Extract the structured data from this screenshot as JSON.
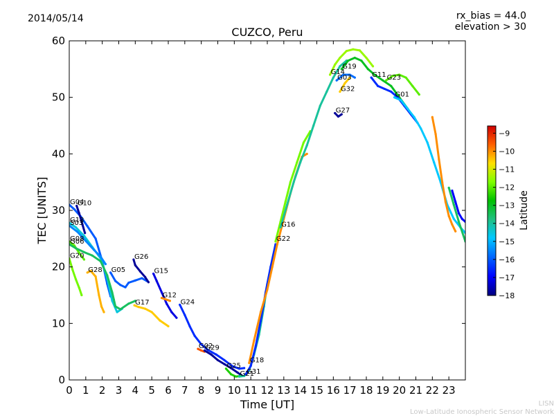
{
  "header": {
    "date": "2014/05/14",
    "rx_bias": "rx_bias = 44.0",
    "elevation": "elevation > 30"
  },
  "footer": {
    "line1": "LISN",
    "line2": "Low-Latitude Ionospheric Sensor Network"
  },
  "chart_data": {
    "type": "scatter",
    "title": "CUZCO, Peru",
    "xlabel": "Time [UT]",
    "ylabel": "TEC [UNITS]",
    "xlim": [
      0,
      24
    ],
    "ylim": [
      0,
      60
    ],
    "xticks": [
      0,
      1,
      2,
      3,
      4,
      5,
      6,
      7,
      8,
      9,
      10,
      11,
      12,
      13,
      14,
      15,
      16,
      17,
      18,
      19,
      20,
      21,
      22,
      23
    ],
    "yticks": [
      0,
      10,
      20,
      30,
      40,
      50,
      60
    ],
    "grid": false,
    "colorbar": {
      "label": "Latitude",
      "range": [
        -18,
        -8.6
      ],
      "ticks": [
        -18,
        -17,
        -16,
        -15,
        -14,
        -13,
        -12,
        -11,
        -10,
        -9
      ],
      "colormap": "jet"
    },
    "series": [
      {
        "name": "G04",
        "lat": -16.0,
        "points": [
          [
            0.0,
            31.0
          ],
          [
            0.3,
            30.2
          ],
          [
            0.7,
            28.9
          ],
          [
            1.1,
            27.2
          ],
          [
            1.6,
            25.0
          ],
          [
            2.0,
            21.0
          ],
          [
            2.3,
            17.0
          ],
          [
            2.5,
            14.8
          ],
          [
            2.7,
            14.2
          ]
        ]
      },
      {
        "name": "G10",
        "lat": -17.8,
        "points": [
          [
            0.45,
            30.8
          ],
          [
            0.6,
            29.5
          ],
          [
            0.8,
            27.5
          ],
          [
            0.95,
            26.0
          ]
        ]
      },
      {
        "name": "G13",
        "lat": -14.5,
        "points": [
          [
            0.0,
            27.8
          ],
          [
            0.4,
            27.0
          ],
          [
            0.9,
            25.5
          ],
          [
            1.4,
            23.5
          ],
          [
            1.9,
            21.5
          ],
          [
            2.3,
            18.0
          ],
          [
            2.6,
            14.0
          ],
          [
            2.9,
            12.0
          ],
          [
            3.2,
            12.6
          ]
        ]
      },
      {
        "name": "S03",
        "lat": -15.5,
        "points": [
          [
            0.0,
            27.3
          ],
          [
            0.5,
            26.2
          ],
          [
            1.0,
            24.6
          ],
          [
            1.5,
            23.0
          ],
          [
            1.9,
            21.8
          ],
          [
            2.2,
            20.5
          ]
        ]
      },
      {
        "name": "G08",
        "lat": -12.0,
        "points": [
          [
            0.0,
            24.5
          ],
          [
            0.3,
            23.8
          ],
          [
            0.6,
            22.5
          ],
          [
            0.9,
            21.3
          ]
        ]
      },
      {
        "name": "G06",
        "lat": -13.5,
        "points": [
          [
            0.0,
            24.0
          ],
          [
            0.4,
            23.3
          ],
          [
            0.9,
            22.6
          ],
          [
            1.4,
            22.0
          ],
          [
            1.9,
            21.0
          ],
          [
            2.3,
            18.5
          ],
          [
            2.6,
            15.5
          ],
          [
            2.8,
            13.0
          ],
          [
            3.1,
            12.5
          ],
          [
            3.6,
            13.5
          ],
          [
            4.0,
            14.0
          ]
        ]
      },
      {
        "name": "G20",
        "lat": -11.8,
        "points": [
          [
            0.0,
            21.5
          ],
          [
            0.2,
            19.5
          ],
          [
            0.4,
            17.8
          ],
          [
            0.6,
            16.3
          ],
          [
            0.75,
            15.0
          ]
        ]
      },
      {
        "name": "G28",
        "lat": -10.3,
        "points": [
          [
            1.1,
            19.0
          ],
          [
            1.3,
            19.3
          ],
          [
            1.6,
            18.3
          ],
          [
            1.8,
            15.0
          ],
          [
            1.95,
            13.0
          ],
          [
            2.1,
            12.0
          ]
        ]
      },
      {
        "name": "G05",
        "lat": -16.0,
        "points": [
          [
            2.5,
            19.0
          ],
          [
            2.8,
            17.5
          ],
          [
            3.1,
            16.8
          ],
          [
            3.4,
            16.4
          ],
          [
            3.6,
            17.2
          ],
          [
            4.0,
            17.6
          ],
          [
            4.4,
            18.0
          ],
          [
            4.7,
            17.5
          ]
        ]
      },
      {
        "name": "G26",
        "lat": -17.8,
        "points": [
          [
            3.9,
            21.3
          ],
          [
            4.0,
            20.3
          ],
          [
            4.3,
            19.2
          ],
          [
            4.6,
            18.2
          ],
          [
            4.8,
            17.3
          ]
        ]
      },
      {
        "name": "G17",
        "lat": -10.5,
        "points": [
          [
            3.95,
            13.2
          ],
          [
            4.2,
            12.9
          ],
          [
            4.6,
            12.6
          ],
          [
            5.0,
            12.0
          ],
          [
            5.5,
            10.5
          ],
          [
            6.0,
            9.5
          ]
        ]
      },
      {
        "name": "G15",
        "lat": -17.2,
        "points": [
          [
            5.1,
            18.8
          ],
          [
            5.3,
            17.5
          ],
          [
            5.6,
            15.5
          ],
          [
            5.9,
            13.5
          ],
          [
            6.2,
            12.0
          ],
          [
            6.5,
            11.0
          ]
        ]
      },
      {
        "name": "G12",
        "lat": -10.0,
        "points": [
          [
            5.6,
            14.5
          ],
          [
            5.8,
            14.3
          ],
          [
            6.1,
            14.0
          ]
        ]
      },
      {
        "name": "G24",
        "lat": -16.5,
        "points": [
          [
            6.7,
            13.3
          ],
          [
            7.0,
            11.5
          ],
          [
            7.3,
            9.5
          ],
          [
            7.6,
            7.8
          ],
          [
            8.0,
            6.3
          ],
          [
            8.4,
            5.3
          ],
          [
            8.9,
            4.5
          ],
          [
            9.4,
            3.5
          ],
          [
            9.9,
            2.4
          ],
          [
            10.3,
            2.0
          ],
          [
            10.6,
            2.1
          ]
        ]
      },
      {
        "name": "G02",
        "lat": -9.5,
        "points": [
          [
            7.8,
            5.5
          ],
          [
            8.0,
            5.2
          ],
          [
            8.2,
            5.0
          ]
        ]
      },
      {
        "name": "G29",
        "lat": -17.8,
        "points": [
          [
            8.2,
            5.2
          ],
          [
            8.6,
            4.5
          ],
          [
            9.0,
            3.5
          ],
          [
            9.4,
            2.8
          ],
          [
            9.8,
            2.1
          ],
          [
            10.2,
            1.3
          ],
          [
            10.45,
            0.8
          ]
        ]
      },
      {
        "name": "G25",
        "lat": -12.5,
        "points": [
          [
            9.5,
            2.0
          ],
          [
            9.8,
            1.0
          ],
          [
            10.1,
            0.6
          ],
          [
            10.4,
            0.7
          ]
        ]
      },
      {
        "name": "G21",
        "lat": -14.0,
        "points": [
          [
            10.3,
            0.6
          ],
          [
            10.6,
            0.7
          ],
          [
            10.9,
            1.7
          ],
          [
            11.2,
            4.5
          ],
          [
            11.5,
            8.0
          ],
          [
            11.8,
            13.0
          ],
          [
            12.0,
            17.0
          ],
          [
            12.15,
            19.0
          ]
        ]
      },
      {
        "name": "G31",
        "lat": -16.5,
        "points": [
          [
            10.7,
            1.0
          ],
          [
            11.0,
            2.5
          ],
          [
            11.3,
            6.0
          ],
          [
            11.6,
            10.5
          ],
          [
            11.9,
            15.5
          ],
          [
            12.2,
            20.0
          ],
          [
            12.5,
            24.0
          ]
        ]
      },
      {
        "name": "G18",
        "lat": -10.0,
        "points": [
          [
            10.9,
            3.0
          ],
          [
            11.2,
            7.0
          ],
          [
            11.6,
            12.0
          ],
          [
            12.0,
            16.0
          ],
          [
            12.3,
            20.0
          ],
          [
            12.6,
            24.0
          ],
          [
            13.0,
            28.5
          ],
          [
            13.4,
            33.0
          ],
          [
            13.7,
            36.0
          ],
          [
            14.1,
            39.5
          ],
          [
            14.4,
            40.0
          ]
        ]
      },
      {
        "name": "G22",
        "lat": -11.8,
        "points": [
          [
            12.5,
            24.5
          ],
          [
            12.8,
            28.0
          ],
          [
            13.1,
            31.5
          ],
          [
            13.4,
            35.0
          ],
          [
            13.8,
            38.5
          ],
          [
            14.2,
            42.0
          ],
          [
            14.6,
            44.0
          ]
        ]
      },
      {
        "name": "G16",
        "lat": -14.0,
        "points": [
          [
            12.8,
            27.0
          ],
          [
            13.2,
            31.0
          ],
          [
            13.6,
            35.0
          ],
          [
            14.0,
            38.5
          ],
          [
            14.4,
            41.5
          ],
          [
            14.8,
            45.0
          ],
          [
            15.2,
            48.5
          ],
          [
            15.6,
            51.0
          ],
          [
            16.0,
            53.5
          ],
          [
            16.4,
            55.5
          ],
          [
            16.8,
            56.5
          ]
        ]
      },
      {
        "name": "G27",
        "lat": -17.8,
        "points": [
          [
            16.1,
            47.2
          ],
          [
            16.3,
            46.6
          ],
          [
            16.5,
            47.0
          ]
        ]
      },
      {
        "name": "G14",
        "lat": -11.5,
        "points": [
          [
            15.8,
            54.0
          ],
          [
            16.1,
            55.8
          ],
          [
            16.4,
            57.0
          ],
          [
            16.8,
            58.2
          ],
          [
            17.2,
            58.5
          ],
          [
            17.6,
            58.3
          ],
          [
            18.0,
            57.0
          ],
          [
            18.4,
            55.5
          ]
        ]
      },
      {
        "name": "G19",
        "lat": -13.0,
        "points": [
          [
            16.5,
            55.0
          ],
          [
            16.9,
            56.5
          ],
          [
            17.3,
            57.0
          ],
          [
            17.7,
            56.5
          ],
          [
            18.1,
            55.0
          ],
          [
            18.5,
            54.0
          ],
          [
            19.0,
            53.0
          ],
          [
            19.5,
            52.0
          ],
          [
            20.0,
            50.0
          ],
          [
            20.5,
            48.0
          ]
        ]
      },
      {
        "name": "G03",
        "lat": -15.8,
        "points": [
          [
            16.2,
            53.0
          ],
          [
            16.6,
            54.0
          ],
          [
            17.0,
            54.0
          ],
          [
            17.3,
            53.5
          ]
        ]
      },
      {
        "name": "G32",
        "lat": -10.5,
        "points": [
          [
            16.4,
            51.0
          ],
          [
            16.7,
            52.5
          ],
          [
            17.0,
            53.5
          ]
        ]
      },
      {
        "name": "G11",
        "lat": -16.5,
        "points": [
          [
            18.3,
            53.5
          ],
          [
            18.7,
            52.0
          ],
          [
            19.1,
            51.5
          ],
          [
            19.5,
            51.0
          ],
          [
            19.9,
            50.0
          ],
          [
            20.3,
            48.5
          ],
          [
            20.7,
            47.0
          ],
          [
            21.1,
            45.5
          ]
        ]
      },
      {
        "name": "G23",
        "lat": -12.0,
        "points": [
          [
            19.2,
            53.0
          ],
          [
            19.6,
            53.8
          ],
          [
            20.0,
            54.0
          ],
          [
            20.4,
            53.5
          ],
          [
            20.8,
            52.0
          ],
          [
            21.2,
            50.5
          ]
        ]
      },
      {
        "name": "G01",
        "lat": -14.8,
        "points": [
          [
            19.7,
            50.0
          ],
          [
            20.1,
            49.5
          ],
          [
            20.5,
            48.0
          ],
          [
            20.9,
            46.5
          ],
          [
            21.3,
            44.5
          ],
          [
            21.7,
            42.0
          ],
          [
            22.1,
            38.5
          ],
          [
            22.5,
            35.0
          ],
          [
            22.9,
            31.0
          ],
          [
            23.3,
            28.5
          ],
          [
            23.7,
            27.0
          ],
          [
            24.0,
            26.0
          ]
        ]
      },
      {
        "name": "",
        "lat": -10.0,
        "points": [
          [
            22.0,
            46.5
          ],
          [
            22.2,
            43.5
          ],
          [
            22.4,
            39.0
          ],
          [
            22.6,
            35.0
          ],
          [
            22.8,
            31.5
          ],
          [
            23.0,
            29.0
          ],
          [
            23.2,
            27.5
          ],
          [
            23.4,
            26.3
          ]
        ]
      },
      {
        "name": "",
        "lat": -17.0,
        "points": [
          [
            23.2,
            33.5
          ],
          [
            23.4,
            31.5
          ],
          [
            23.6,
            29.5
          ],
          [
            23.8,
            28.5
          ],
          [
            24.0,
            28.0
          ]
        ]
      },
      {
        "name": "",
        "lat": -13.5,
        "points": [
          [
            23.0,
            34.0
          ],
          [
            23.3,
            31.0
          ],
          [
            23.6,
            28.0
          ],
          [
            24.0,
            24.5
          ]
        ]
      }
    ]
  }
}
